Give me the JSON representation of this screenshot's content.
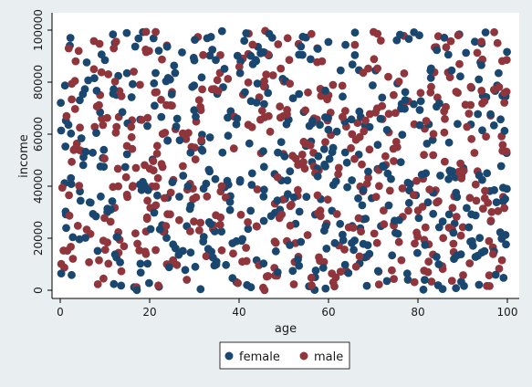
{
  "chart_data": {
    "type": "scatter",
    "title": "",
    "xlabel": "age",
    "ylabel": "income",
    "xlim": [
      0,
      100
    ],
    "ylim": [
      0,
      100000
    ],
    "x_ticks": [
      0,
      20,
      40,
      60,
      80,
      100
    ],
    "y_ticks": [
      0,
      20000,
      40000,
      60000,
      80000,
      100000
    ],
    "grid": false,
    "legend_position": "bottom",
    "series": [
      {
        "name": "female",
        "color": "#1a476f",
        "count_estimate": 500
      },
      {
        "name": "male",
        "color": "#90353b",
        "count_estimate": 500
      }
    ],
    "note": "",
    "legend": {
      "items": [
        {
          "label": "female"
        },
        {
          "label": "male"
        }
      ]
    }
  },
  "colors": {
    "background": "#e9eef1",
    "plot_background": "#ffffff",
    "axis": "#000000"
  }
}
